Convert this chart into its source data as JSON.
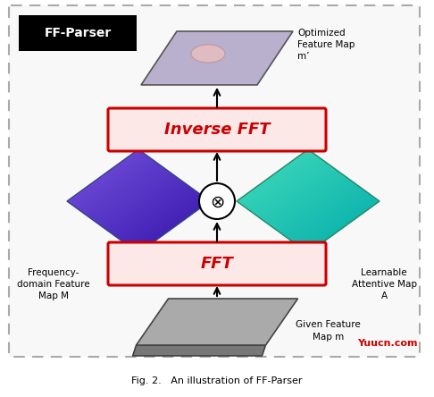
{
  "title": "Fig. 2.   An illustration of FF-Parser",
  "background_color": "#ffffff",
  "ff_parser_label": "FF-Parser",
  "box_fft_label": "FFT",
  "box_ifft_label": "Inverse FFT",
  "box_fill_color": "#fde8e8",
  "box_edge_color": "#cc0000",
  "box_text_color": "#cc0000",
  "label_given": "Given Feature\nMap m",
  "label_freq": "Frequency-\ndomain Feature\nMap M",
  "label_learnable": "Learnable\nAttentive Map\nA",
  "label_optimized": "Optimized\nFeature Map\nm’",
  "watermark": "Yuucn.com",
  "watermark_color": "#cc0000",
  "figsize": [
    4.86,
    4.44
  ],
  "dpi": 100
}
